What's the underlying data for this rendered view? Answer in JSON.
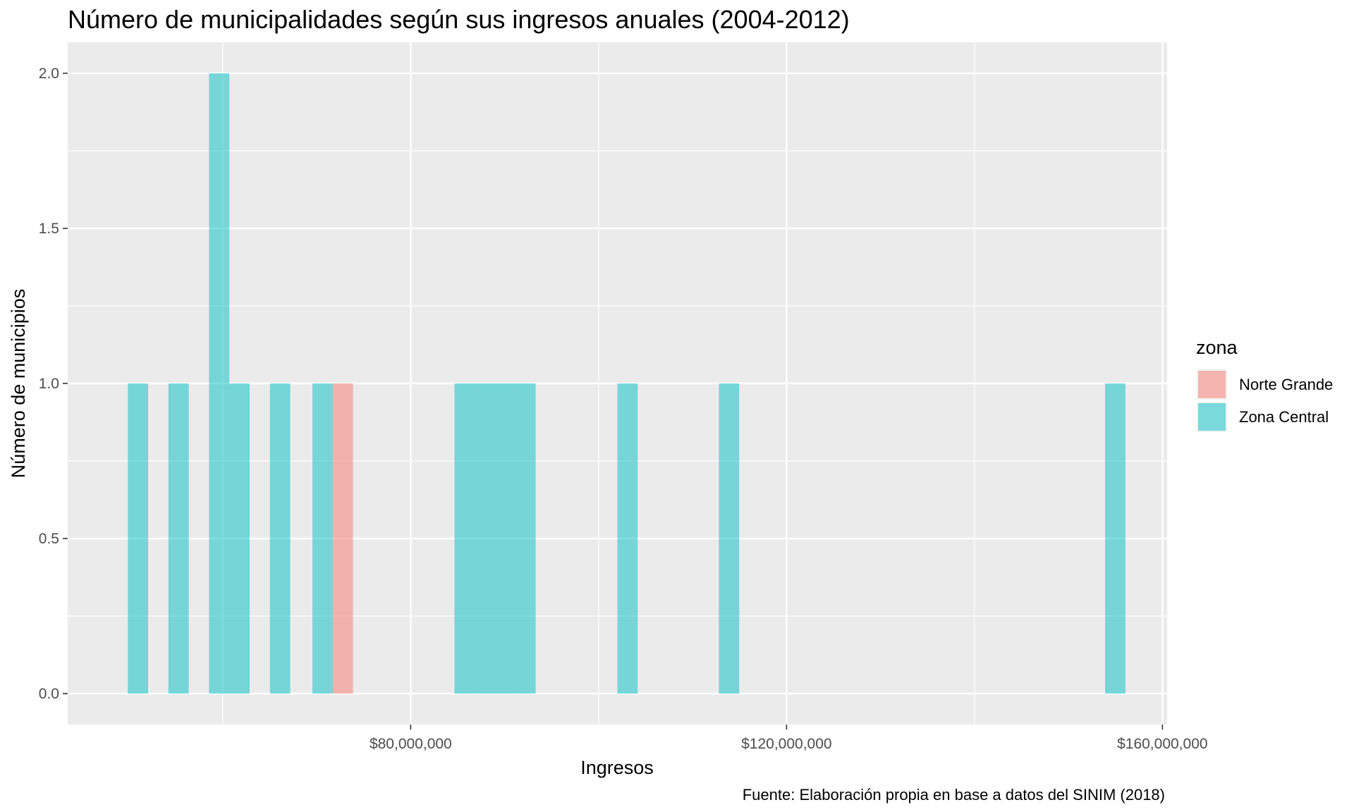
{
  "chart_data": {
    "type": "bar",
    "title": "Número de municipalidades según sus ingresos anuales (2004-2012)",
    "xlabel": "Ingresos",
    "ylabel": "Número de municipios",
    "caption": "Fuente: Elaboración propia en base a datos del SINIM (2018)",
    "xlim": [
      43500000,
      160500000
    ],
    "ylim": [
      -0.1,
      2.1
    ],
    "x_ticks": [
      80000000,
      120000000,
      160000000
    ],
    "x_tick_labels": [
      "$80,000,000",
      "$120,000,000",
      "$160,000,000"
    ],
    "y_ticks": [
      0,
      0.5,
      1,
      1.5,
      2
    ],
    "y_tick_labels": [
      "0.0",
      "0.5",
      "1.0",
      "1.5",
      "2.0"
    ],
    "grid": true,
    "bin_width": 2160000,
    "legend": {
      "title": "zona",
      "position": "right",
      "entries": [
        "Norte Grande",
        "Zona Central"
      ]
    },
    "series": [
      {
        "name": "Norte Grande",
        "color": "#F8766D",
        "bins": [
          {
            "x0": 71700000,
            "x1": 73860000,
            "count": 1
          }
        ]
      },
      {
        "name": "Zona Central",
        "color": "#00BFC4",
        "bins": [
          {
            "x0": 49900000,
            "x1": 52060000,
            "count": 1
          },
          {
            "x0": 54220000,
            "x1": 56380000,
            "count": 1
          },
          {
            "x0": 58540000,
            "x1": 60700000,
            "count": 2
          },
          {
            "x0": 60700000,
            "x1": 62860000,
            "count": 1
          },
          {
            "x0": 65020000,
            "x1": 67180000,
            "count": 1
          },
          {
            "x0": 69540000,
            "x1": 71700000,
            "count": 1
          },
          {
            "x0": 84660000,
            "x1": 86820000,
            "count": 1
          },
          {
            "x0": 86820000,
            "x1": 88980000,
            "count": 1
          },
          {
            "x0": 88980000,
            "x1": 91140000,
            "count": 1
          },
          {
            "x0": 91140000,
            "x1": 93300000,
            "count": 1
          },
          {
            "x0": 102000000,
            "x1": 104160000,
            "count": 1
          },
          {
            "x0": 112800000,
            "x1": 114960000,
            "count": 1
          },
          {
            "x0": 153900000,
            "x1": 156060000,
            "count": 1
          }
        ]
      }
    ]
  }
}
